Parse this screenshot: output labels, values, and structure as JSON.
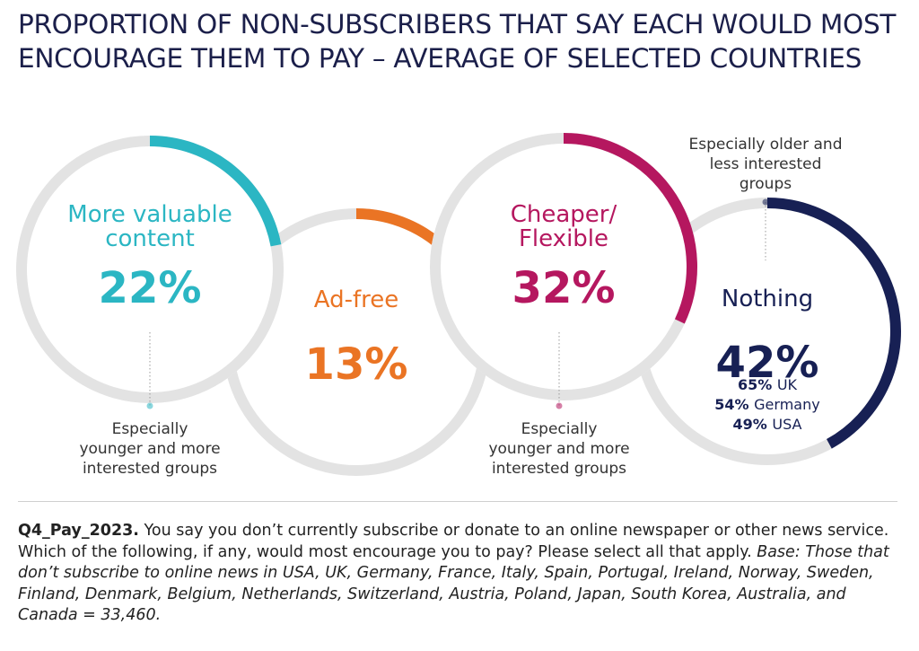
{
  "title": "PROPORTION OF NON-SUBSCRIBERS THAT SAY EACH WOULD MOST ENCOURAGE THEM TO PAY – AVERAGE OF SELECTED COUNTRIES",
  "colors": {
    "track": "#e3e3e3",
    "title": "#1b1f4a",
    "note": "#333333"
  },
  "chart_data": {
    "type": "pie",
    "unit": "%",
    "series": [
      {
        "label_lines": [
          "More valuable",
          "content"
        ],
        "value": 22,
        "value_label": "22%",
        "color": "#2bb6c3",
        "note_lines": [
          "Especially",
          "younger and more",
          "interested groups"
        ]
      },
      {
        "label_lines": [
          "Ad-free"
        ],
        "value": 13,
        "value_label": "13%",
        "color": "#ea7424",
        "note_lines": []
      },
      {
        "label_lines": [
          "Cheaper/",
          "Flexible"
        ],
        "value": 32,
        "value_label": "32%",
        "color": "#b5175f",
        "note_lines": [
          "Especially",
          "younger and more",
          "interested groups"
        ]
      },
      {
        "label_lines": [
          "Nothing"
        ],
        "value": 42,
        "value_label": "42%",
        "color": "#172054",
        "note_lines": [
          "Especially older and",
          "less interested",
          "groups"
        ],
        "breakdown": [
          {
            "value": "65%",
            "country": "UK"
          },
          {
            "value": "54%",
            "country": "Germany"
          },
          {
            "value": "49%",
            "country": "USA"
          }
        ]
      }
    ]
  },
  "footnote": {
    "id": "Q4_Pay_2023.",
    "question": " You say you don’t currently subscribe or donate to an online newspaper or other news service. Which of the following, if any, would most encourage you to pay? Please select all that apply. ",
    "base": "Base: Those that don’t subscribe to online news in USA, UK, Germany, France, Italy, Spain, Portugal, Ireland, Norway, Sweden, Finland, Denmark, Belgium, Netherlands, Switzerland, Austria, Poland, Japan, South Korea, Australia, and Canada = 33,460."
  }
}
